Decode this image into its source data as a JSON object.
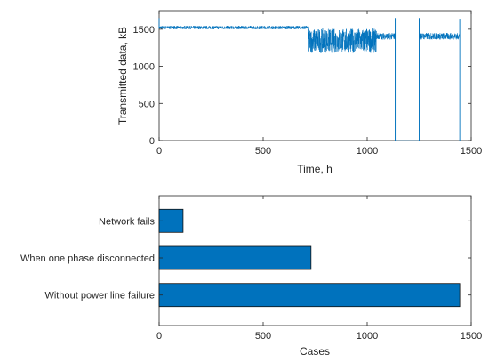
{
  "chart_data": [
    {
      "type": "line",
      "xlabel": "Time, h",
      "ylabel": "Transmitted data, kB",
      "xlim": [
        0,
        1500
      ],
      "ylim": [
        0,
        1750
      ],
      "xticks": [
        0,
        500,
        1000,
        1500
      ],
      "yticks": [
        0,
        500,
        1000,
        1500
      ],
      "grid": false,
      "series_color": "#0072bd",
      "segments": [
        {
          "x_start": 0,
          "x_end": 715,
          "level": 1520,
          "band": [
            1500,
            1545
          ]
        },
        {
          "x_start": 715,
          "x_end": 1045,
          "level": 1360,
          "band": [
            1180,
            1510
          ]
        },
        {
          "x_start": 1045,
          "x_end": 1135,
          "level": 1410,
          "band": [
            1360,
            1450
          ]
        },
        {
          "x_start": 1135,
          "x_end": 1250,
          "level": 0,
          "band": [
            0,
            0
          ]
        },
        {
          "x_start": 1250,
          "x_end": 1445,
          "level": 1410,
          "band": [
            1360,
            1450
          ]
        }
      ],
      "spikes": [
        {
          "x": 1135,
          "y": 1650
        },
        {
          "x": 1250,
          "y": 1650
        },
        {
          "x": 1445,
          "y": 1640
        }
      ]
    },
    {
      "type": "bar",
      "orientation": "horizontal",
      "xlabel": "Cases",
      "xlim": [
        0,
        1500
      ],
      "xticks": [
        0,
        500,
        1000,
        1500
      ],
      "categories": [
        "Without power line failure",
        "When one phase disconnected",
        "Network fails"
      ],
      "values": [
        1445,
        730,
        115
      ],
      "bar_color": "#0072bd"
    }
  ]
}
